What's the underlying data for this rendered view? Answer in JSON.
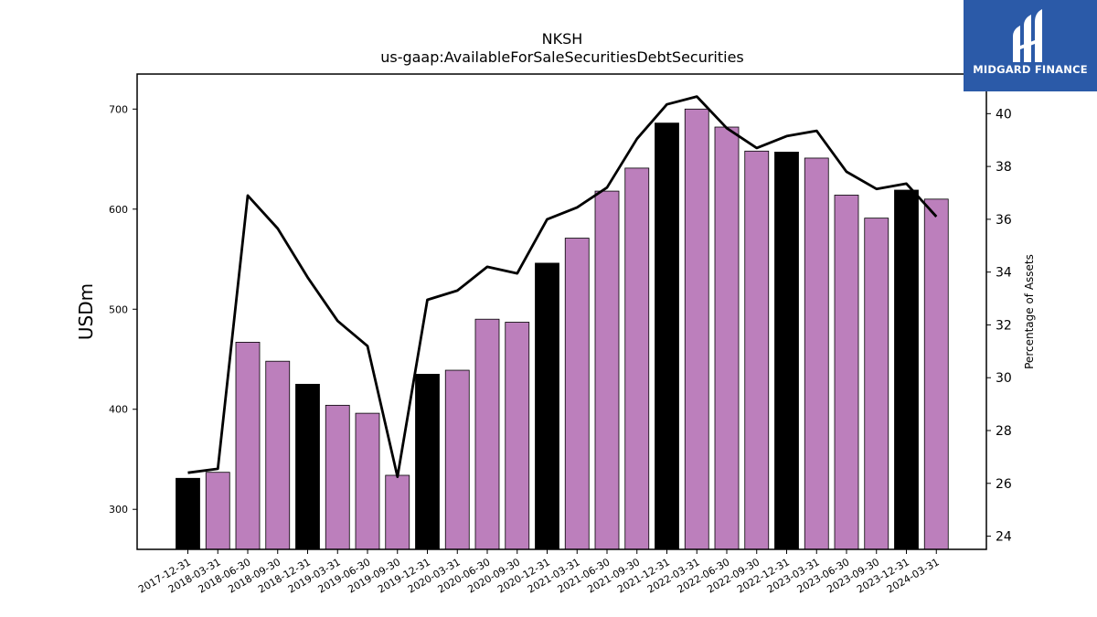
{
  "chart_data": {
    "type": "bar+line",
    "title": "NKSH",
    "subtitle": "us-gaap:AvailableForSaleSecuritiesDebtSecurities",
    "ylabel": "USDm",
    "y2label": "Percentage of Assets",
    "ylim": [
      260,
      735
    ],
    "y2lim": [
      23.5,
      41.5
    ],
    "yticks": [
      300,
      400,
      500,
      600,
      700
    ],
    "y2ticks": [
      24,
      26,
      28,
      30,
      32,
      34,
      36,
      38,
      40
    ],
    "categories": [
      "2017-12-31",
      "2018-03-31",
      "2018-06-30",
      "2018-09-30",
      "2018-12-31",
      "2019-03-31",
      "2019-06-30",
      "2019-09-30",
      "2019-12-31",
      "2020-03-31",
      "2020-06-30",
      "2020-09-30",
      "2020-12-31",
      "2021-03-31",
      "2021-06-30",
      "2021-09-30",
      "2021-12-31",
      "2022-03-31",
      "2022-06-30",
      "2022-09-30",
      "2022-12-31",
      "2023-03-31",
      "2023-06-30",
      "2023-09-30",
      "2023-12-31",
      "2024-03-31"
    ],
    "series": [
      {
        "kind": "bar",
        "unit": "USDm",
        "values": [
          331,
          337,
          467,
          448,
          425,
          404,
          396,
          334,
          435,
          439,
          490,
          487,
          546,
          571,
          618,
          641,
          686,
          700,
          682,
          658,
          657,
          651,
          614,
          591,
          619,
          610
        ]
      },
      {
        "kind": "line",
        "unit": "Percentage of Assets",
        "values": [
          26.4,
          26.55,
          36.9,
          35.65,
          33.8,
          32.15,
          31.2,
          26.25,
          32.95,
          33.3,
          34.2,
          33.95,
          36.0,
          36.45,
          37.2,
          39.05,
          40.35,
          40.65,
          39.45,
          38.7,
          39.15,
          39.35,
          37.8,
          37.15,
          37.35,
          36.1
        ]
      }
    ],
    "bar_colors": {
      "year_end": "#000000",
      "quarter": "#bc7fbc"
    },
    "line_color": "#000000",
    "grid": false
  },
  "logo": {
    "text": "MIDGARD FINANCE",
    "color": "#2b5aa8"
  }
}
